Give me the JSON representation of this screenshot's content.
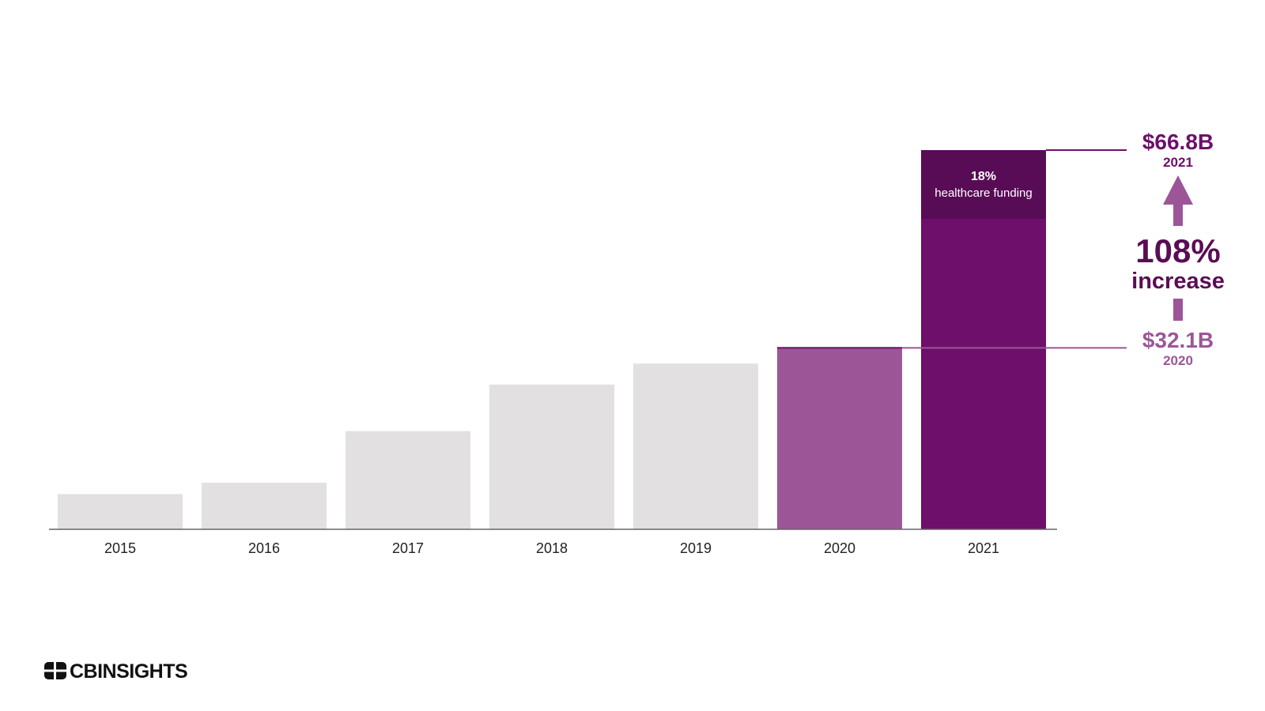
{
  "chart_data": {
    "type": "bar",
    "title": "",
    "xlabel": "",
    "ylabel": "",
    "categories": [
      "2015",
      "2016",
      "2017",
      "2018",
      "2019",
      "2020",
      "2021"
    ],
    "values": [
      6.2,
      8.2,
      17.3,
      25.5,
      29.2,
      32.1,
      66.8
    ],
    "ylim": [
      0,
      66.8
    ],
    "grid": false,
    "highlight": {
      "2020": "#9c5698",
      "2021": "#6e0f6b"
    },
    "segment_2021": {
      "pct_label": "18%",
      "label": "healthcare funding",
      "share": 0.18,
      "color": "#580c55"
    }
  },
  "callouts": {
    "top_value": "$66.8B",
    "top_year": "2021",
    "bottom_value": "$32.1B",
    "bottom_year": "2020",
    "increase_pct": "108%",
    "increase_word": "increase"
  },
  "colors": {
    "base_bar": "#e2e0e1",
    "bar_2020": "#9c5698",
    "bar_2021": "#6e0f6b",
    "segment_2021": "#580c55",
    "arrow": "#9c5698",
    "top_callout": "#6e0f6b",
    "bottom_callout": "#9c5698",
    "axis": "#666666"
  },
  "logo": {
    "text": "CBINSIGHTS"
  }
}
